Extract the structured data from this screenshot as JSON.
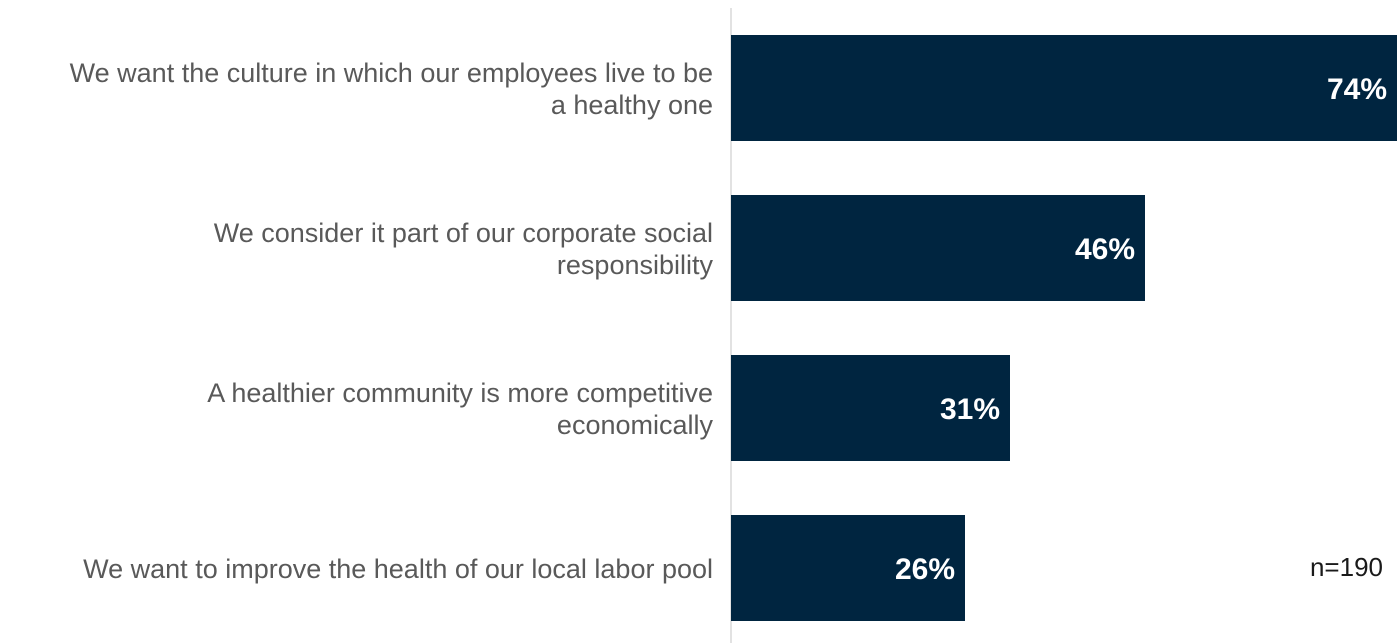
{
  "chart_data": {
    "type": "bar",
    "orientation": "horizontal",
    "categories": [
      [
        "We want the culture in which our employees live to be",
        "a healthy one"
      ],
      [
        "We consider it part of our corporate social",
        "responsibility"
      ],
      [
        "A healthier community is more competitive",
        "economically"
      ],
      [
        "We want to improve the health of our local labor pool"
      ]
    ],
    "values": [
      74,
      46,
      31,
      26
    ],
    "value_labels": [
      "74%",
      "46%",
      "31%",
      "26%"
    ],
    "xlim": [
      0,
      74
    ],
    "grid": false,
    "bar_color": "#002540",
    "axis_color": "#d9d9d9",
    "label_color": "#595959"
  },
  "note": "n=190"
}
